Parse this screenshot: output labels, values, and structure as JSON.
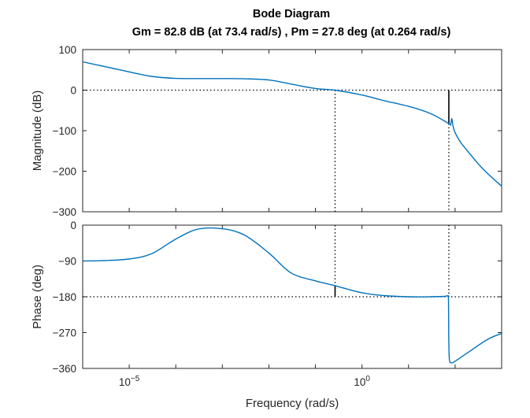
{
  "colors": {
    "curve": "#0072BD",
    "axes": "#262626",
    "background": "#ffffff"
  },
  "chart_data": {
    "type": "line",
    "title": "Bode Diagram",
    "subtitle": "Gm = 82.8 dB (at 73.4 rad/s) ,  Pm = 27.8 deg (at 0.264 rad/s)",
    "xlabel": "Frequency  (rad/s)",
    "xscale": "log",
    "xlim": [
      1e-06,
      1000
    ],
    "xticks": [
      {
        "value": 1e-05,
        "base": "10",
        "exp": "-5"
      },
      {
        "value": 1,
        "base": "10",
        "exp": "0"
      }
    ],
    "gain_margin": {
      "value_db": 82.8,
      "frequency": 73.4
    },
    "phase_margin": {
      "value_deg": 27.8,
      "frequency": 0.264
    },
    "magnitude": {
      "ylabel": "Magnitude (dB)",
      "ylim": [
        -300,
        100
      ],
      "yticks": [
        100,
        0,
        -100,
        -200,
        -300
      ],
      "reference_db": 0,
      "series": [
        {
          "x": [
            1e-06,
            3e-06,
            1e-05,
            3e-05,
            0.0001,
            0.0003,
            0.001,
            0.003,
            0.01,
            0.03,
            0.1,
            0.264,
            1,
            3,
            10,
            30,
            73.4,
            80,
            85,
            90,
            100,
            130,
            200,
            400,
            1000
          ],
          "y": [
            70,
            58,
            45,
            34,
            29,
            28.5,
            28.5,
            28,
            25,
            15,
            4,
            0,
            -12,
            -26,
            -40,
            -58,
            -82.8,
            -85,
            -70,
            -88,
            -105,
            -128,
            -155,
            -195,
            -237
          ]
        }
      ]
    },
    "phase": {
      "ylabel": "Phase (deg)",
      "ylim": [
        -360,
        0
      ],
      "yticks": [
        0,
        -90,
        -180,
        -270,
        -360
      ],
      "reference_deg": -180,
      "series": [
        {
          "x": [
            1e-06,
            3e-06,
            1e-05,
            3e-05,
            0.0001,
            0.0003,
            0.001,
            0.003,
            0.01,
            0.03,
            0.1,
            0.264,
            1,
            3,
            10,
            30,
            60,
            70,
            72,
            73.4,
            76,
            85,
            100,
            200,
            500,
            1000
          ],
          "y": [
            -90,
            -89,
            -85,
            -72,
            -35,
            -10,
            -9,
            -25,
            -70,
            -120,
            -140,
            -152.2,
            -170,
            -177,
            -180,
            -180,
            -179,
            -178,
            -190,
            -300,
            -340,
            -346,
            -342,
            -318,
            -287,
            -272
          ]
        }
      ]
    }
  }
}
